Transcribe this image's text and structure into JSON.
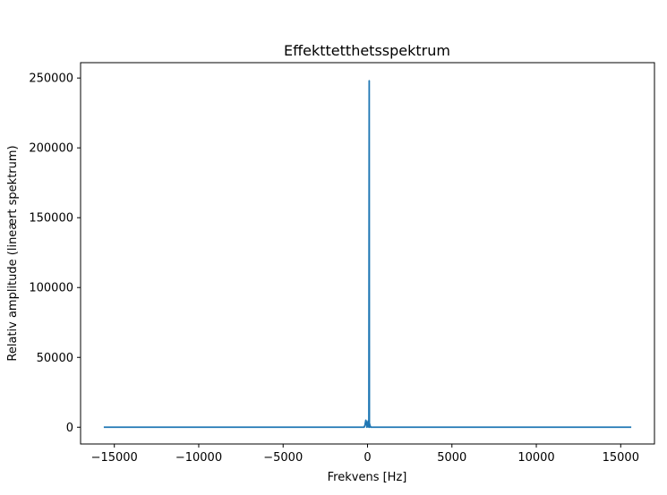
{
  "chart_data": {
    "type": "line",
    "title": "Effekttetthetsspektrum",
    "xlabel": "Frekvens [Hz]",
    "ylabel": "Relativ amplitude (lineært spektrum)",
    "xlim": [
      -17000,
      17000
    ],
    "ylim": [
      -12000,
      261000
    ],
    "grid": false,
    "x_ticks": [
      -15000,
      -10000,
      -5000,
      0,
      5000,
      10000,
      15000
    ],
    "x_tick_labels": [
      "−15000",
      "−10000",
      "−5000",
      "0",
      "5000",
      "10000",
      "15000"
    ],
    "y_ticks": [
      0,
      50000,
      100000,
      150000,
      200000,
      250000
    ],
    "y_tick_labels": [
      "0",
      "50000",
      "100000",
      "150000",
      "200000",
      "250000"
    ],
    "series": [
      {
        "color": "#1f77b4",
        "x": [
          -15625,
          -200,
          -150,
          -100,
          -60,
          -40,
          0,
          40,
          80,
          100,
          110,
          120,
          150,
          200,
          250,
          15625
        ],
        "y": [
          0,
          0,
          1500,
          5000,
          3500,
          0,
          500,
          4500,
          0,
          248000,
          0,
          2500,
          1000,
          0,
          0,
          0
        ]
      }
    ]
  }
}
